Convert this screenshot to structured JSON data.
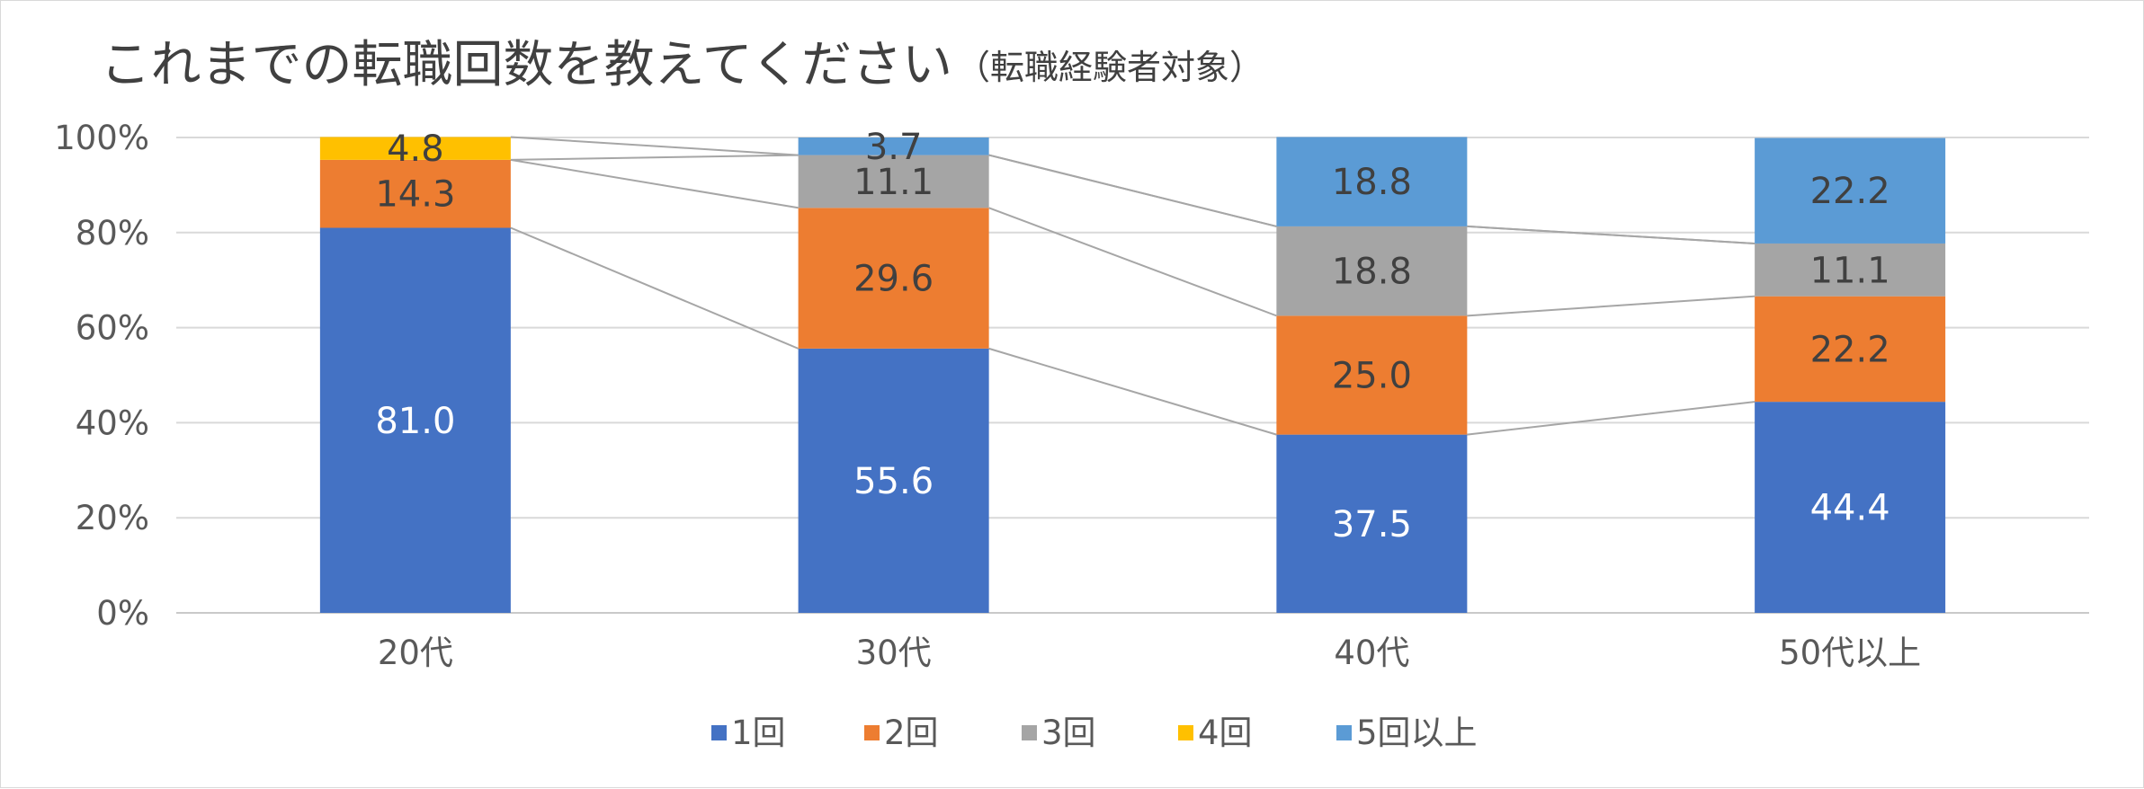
{
  "chart_data": {
    "type": "bar",
    "stacked": true,
    "percent_stacked": true,
    "title": "これまでの転職回数を教えてください",
    "subtitle": "（転職経験者対象）",
    "categories": [
      "20代",
      "30代",
      "40代",
      "50代以上"
    ],
    "series": [
      {
        "name": "1回",
        "color": "#4472c4",
        "values": [
          81.0,
          55.6,
          37.5,
          44.4
        ],
        "label_color": "#ffffff"
      },
      {
        "name": "2回",
        "color": "#ed7d31",
        "values": [
          14.3,
          29.6,
          25.0,
          22.2
        ],
        "label_color": "#404040"
      },
      {
        "name": "3回",
        "color": "#a5a5a5",
        "values": [
          0.0,
          11.1,
          18.8,
          11.1
        ],
        "label_color": "#404040"
      },
      {
        "name": "4回",
        "color": "#ffc000",
        "values": [
          4.8,
          0.0,
          0.0,
          0.0
        ],
        "label_color": "#404040"
      },
      {
        "name": "5回以上",
        "color": "#5b9bd5",
        "values": [
          0.0,
          3.7,
          18.8,
          22.2
        ],
        "label_color": "#404040"
      }
    ],
    "y_ticks": [
      "0%",
      "20%",
      "40%",
      "60%",
      "80%",
      "100%"
    ],
    "ylim": [
      0,
      100
    ],
    "series_lines": true,
    "legend_position": "bottom",
    "gridlines": true
  }
}
